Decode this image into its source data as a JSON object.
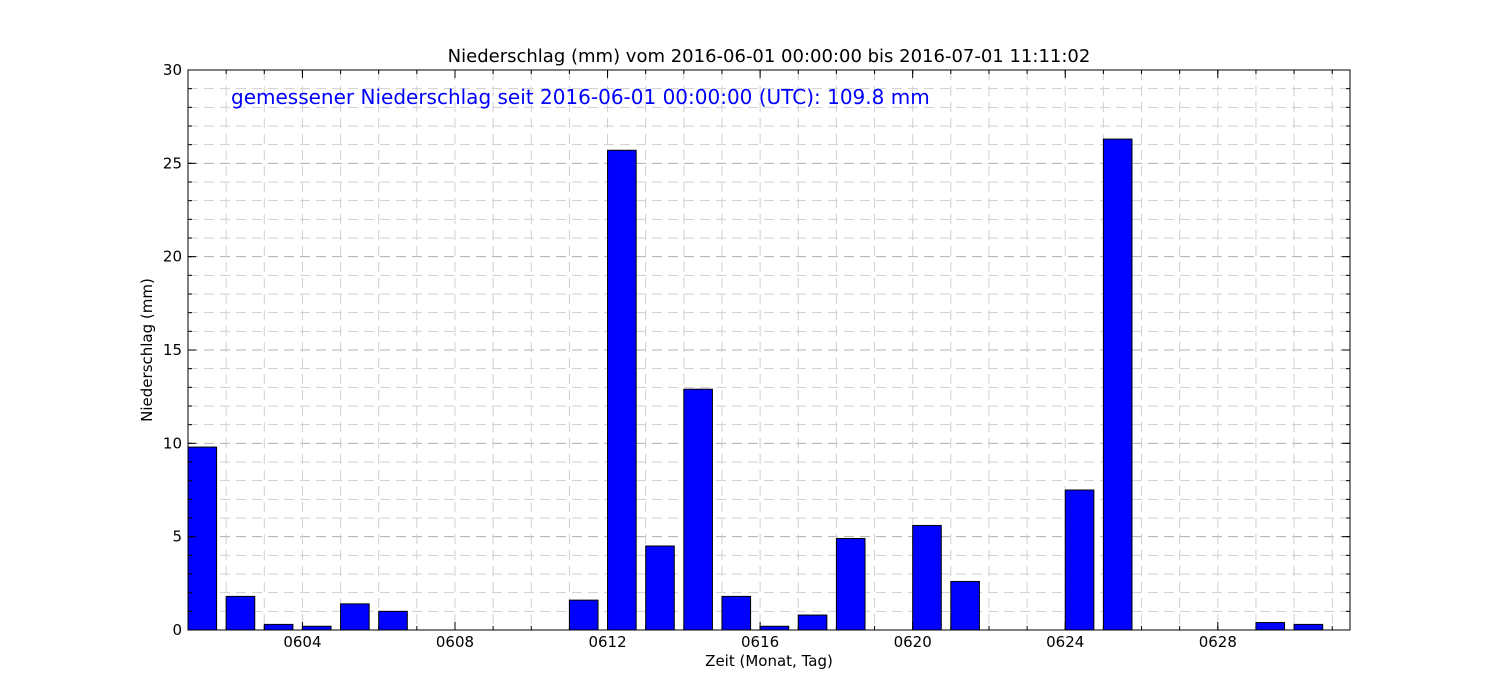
{
  "chart_data": {
    "type": "bar",
    "title": "Niederschlag (mm) vom 2016-06-01 00:00:00 bis 2016-07-01 11:11:02",
    "annotation": "gemessener Niederschlag seit 2016-06-01 00:00:00 (UTC): 109.8 mm",
    "xlabel": "Zeit (Monat, Tag)",
    "ylabel": "Niederschlag (mm)",
    "ylim": [
      0,
      30
    ],
    "yticks": [
      0,
      5,
      10,
      15,
      20,
      25,
      30
    ],
    "xlim": [
      "2016-06-01",
      "2016-07-01 11:11:02"
    ],
    "xticks": [
      "0604",
      "0608",
      "0612",
      "0616",
      "0620",
      "0624",
      "0628"
    ],
    "grid": true,
    "bar_color": "#0000ff",
    "annotation_color": "#0000ff",
    "categories": [
      "0601",
      "0602",
      "0603",
      "0604",
      "0605",
      "0606",
      "0607",
      "0608",
      "0609",
      "0610",
      "0611",
      "0612",
      "0613",
      "0614",
      "0615",
      "0616",
      "0617",
      "0618",
      "0619",
      "0620",
      "0621",
      "0622",
      "0623",
      "0624",
      "0625",
      "0626",
      "0627",
      "0628",
      "0629",
      "0630"
    ],
    "values": [
      9.8,
      1.8,
      0.3,
      0.2,
      1.4,
      1.0,
      0.0,
      0.0,
      0.0,
      0.0,
      1.6,
      25.7,
      4.5,
      12.9,
      1.8,
      0.2,
      0.8,
      4.9,
      0.0,
      5.6,
      2.6,
      0.0,
      0.0,
      7.5,
      26.3,
      0.0,
      0.0,
      0.0,
      0.4,
      0.3
    ]
  }
}
